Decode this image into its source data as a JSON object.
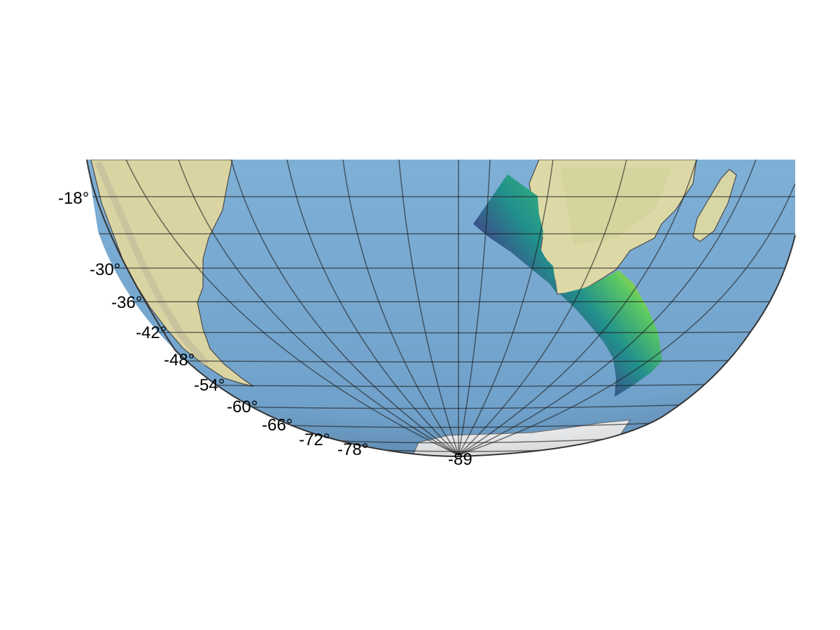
{
  "map": {
    "projection": "orthographic",
    "basemap": "shaded-relief",
    "gridlines": true,
    "colormap": "viridis",
    "colors": {
      "ocean": "#7aaad0",
      "ocean_dark": "#5f8fbc",
      "land": "#ddd9a6",
      "land_green": "#b9c48f",
      "ice": "#f2f4f6",
      "grid": "#1a1a1a",
      "viridis": [
        "#440154",
        "#3b528b",
        "#21918c",
        "#5ec962",
        "#fde725"
      ]
    },
    "latitude_labels": [
      "-18°",
      "-30°",
      "-36°",
      "-42°",
      "-48°",
      "-54°",
      "-60°",
      "-66°",
      "-72°",
      "-78°",
      "-89"
    ]
  }
}
